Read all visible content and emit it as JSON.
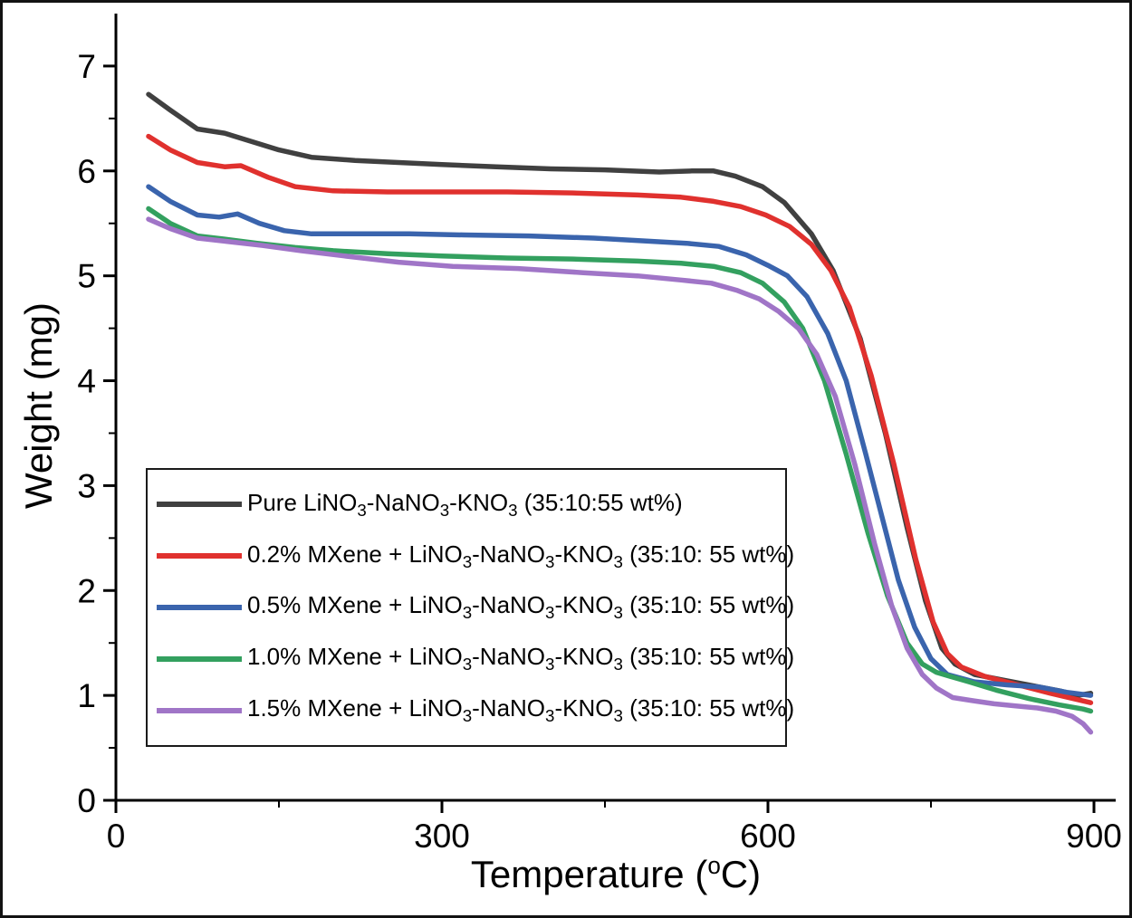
{
  "figure": {
    "background": "#ffffff",
    "border_color": "#121212"
  },
  "axes": {
    "ylabel": "Weight (mg)",
    "xlabel_parts": {
      "pre": "Temperature (",
      "sup": "o",
      "post": "C)"
    }
  },
  "chart_data": {
    "type": "line",
    "title": "",
    "xlabel": "Temperature (oC)",
    "ylabel": "Weight (mg)",
    "xlim": [
      0,
      920
    ],
    "ylim": [
      0,
      7.5
    ],
    "x_ticks": [
      0,
      300,
      600,
      900
    ],
    "x_minor_ticks": [
      150,
      450,
      750
    ],
    "y_ticks": [
      0,
      1,
      2,
      3,
      4,
      5,
      6,
      7
    ],
    "y_minor_ticks": [
      0.5,
      1.5,
      2.5,
      3.5,
      4.5,
      5.5,
      6.5
    ],
    "grid": false,
    "legend_position": "inside lower-left",
    "series": [
      {
        "name": "Pure LiNO3-NaNO3-KNO3 (35:10:55 wt%)",
        "color": "#404040",
        "x": [
          30,
          50,
          75,
          100,
          125,
          150,
          180,
          220,
          260,
          300,
          350,
          400,
          450,
          500,
          530,
          550,
          570,
          595,
          615,
          640,
          660,
          685,
          708,
          728,
          745,
          760,
          772,
          790,
          815,
          845,
          870,
          885,
          897
        ],
        "y": [
          6.73,
          6.58,
          6.4,
          6.36,
          6.28,
          6.2,
          6.13,
          6.1,
          6.08,
          6.06,
          6.04,
          6.02,
          6.01,
          5.99,
          6.0,
          6.0,
          5.95,
          5.85,
          5.7,
          5.4,
          5.05,
          4.4,
          3.5,
          2.6,
          1.9,
          1.45,
          1.3,
          1.2,
          1.15,
          1.09,
          1.04,
          1.0,
          1.02
        ]
      },
      {
        "name": "0.2% MXene + LiNO3-NaNO3-KNO3 (35:10: 55 wt%)",
        "color": "#e0312e",
        "x": [
          30,
          50,
          75,
          100,
          115,
          140,
          165,
          200,
          250,
          300,
          360,
          420,
          480,
          520,
          550,
          575,
          598,
          620,
          640,
          658,
          675,
          695,
          716,
          736,
          752,
          765,
          778,
          800,
          830,
          860,
          885,
          897
        ],
        "y": [
          6.33,
          6.2,
          6.08,
          6.04,
          6.05,
          5.94,
          5.85,
          5.81,
          5.8,
          5.8,
          5.8,
          5.79,
          5.77,
          5.75,
          5.71,
          5.66,
          5.58,
          5.47,
          5.3,
          5.05,
          4.7,
          4.05,
          3.2,
          2.3,
          1.7,
          1.4,
          1.27,
          1.18,
          1.1,
          1.02,
          0.96,
          0.93
        ]
      },
      {
        "name": "0.5% MXene + LiNO3-NaNO3-KNO3 (35:10: 55 wt%)",
        "color": "#3a64ad",
        "x": [
          30,
          50,
          75,
          95,
          112,
          132,
          155,
          180,
          220,
          270,
          320,
          380,
          440,
          490,
          525,
          555,
          580,
          600,
          618,
          636,
          655,
          672,
          690,
          705,
          720,
          735,
          750,
          765,
          790,
          820,
          850,
          875,
          897
        ],
        "y": [
          5.85,
          5.71,
          5.58,
          5.56,
          5.59,
          5.5,
          5.43,
          5.4,
          5.4,
          5.4,
          5.39,
          5.38,
          5.36,
          5.33,
          5.31,
          5.28,
          5.2,
          5.1,
          5.0,
          4.8,
          4.45,
          4.0,
          3.3,
          2.7,
          2.1,
          1.65,
          1.35,
          1.2,
          1.13,
          1.1,
          1.08,
          1.03,
          1.0
        ]
      },
      {
        "name": "1.0% MXene + LiNO3-NaNO3-KNO3 (35:10: 55 wt%)",
        "color": "#33a05f",
        "x": [
          30,
          50,
          75,
          100,
          130,
          165,
          200,
          250,
          300,
          360,
          420,
          480,
          520,
          550,
          575,
          595,
          615,
          632,
          652,
          672,
          692,
          710,
          728,
          742,
          755,
          768,
          785,
          810,
          840,
          868,
          890,
          897
        ],
        "y": [
          5.64,
          5.5,
          5.38,
          5.35,
          5.31,
          5.27,
          5.24,
          5.21,
          5.19,
          5.17,
          5.16,
          5.14,
          5.12,
          5.09,
          5.03,
          4.93,
          4.75,
          4.5,
          4.0,
          3.3,
          2.55,
          1.95,
          1.5,
          1.3,
          1.22,
          1.18,
          1.13,
          1.05,
          0.97,
          0.91,
          0.87,
          0.85
        ]
      },
      {
        "name": "1.5% MXene + LiNO3-NaNO3-KNO3 (35:10: 55 wt%)",
        "color": "#a075c7",
        "x": [
          30,
          50,
          75,
          100,
          135,
          170,
          210,
          260,
          310,
          370,
          430,
          480,
          520,
          548,
          572,
          592,
          610,
          628,
          645,
          662,
          680,
          698,
          714,
          728,
          742,
          755,
          770,
          788,
          808,
          828,
          848,
          865,
          880,
          890,
          897
        ],
        "y": [
          5.54,
          5.45,
          5.36,
          5.33,
          5.29,
          5.24,
          5.19,
          5.13,
          5.09,
          5.07,
          5.03,
          5.0,
          4.96,
          4.93,
          4.86,
          4.78,
          4.66,
          4.5,
          4.25,
          3.85,
          3.2,
          2.45,
          1.85,
          1.45,
          1.2,
          1.07,
          0.98,
          0.95,
          0.92,
          0.9,
          0.88,
          0.85,
          0.8,
          0.73,
          0.65
        ]
      }
    ]
  },
  "legend": {
    "border_color": "#1a1a1a",
    "entries": [
      {
        "color": "#404040",
        "segments": [
          {
            "t": "Pure LiNO"
          },
          {
            "t": "3",
            "sub": true
          },
          {
            "t": "-NaNO"
          },
          {
            "t": "3",
            "sub": true
          },
          {
            "t": "-KNO"
          },
          {
            "t": "3",
            "sub": true
          },
          {
            "t": " (35:10:55 wt%)"
          }
        ]
      },
      {
        "color": "#e0312e",
        "segments": [
          {
            "t": "0.2% MXene + LiNO"
          },
          {
            "t": "3",
            "sub": true
          },
          {
            "t": "-NaNO"
          },
          {
            "t": "3",
            "sub": true
          },
          {
            "t": "-KNO"
          },
          {
            "t": "3",
            "sub": true
          },
          {
            "t": " (35:10: 55 wt%)"
          }
        ]
      },
      {
        "color": "#3a64ad",
        "segments": [
          {
            "t": "0.5% MXene + LiNO"
          },
          {
            "t": "3",
            "sub": true
          },
          {
            "t": "-NaNO"
          },
          {
            "t": "3",
            "sub": true
          },
          {
            "t": "-KNO"
          },
          {
            "t": "3",
            "sub": true
          },
          {
            "t": " (35:10: 55 wt%)"
          }
        ]
      },
      {
        "color": "#33a05f",
        "segments": [
          {
            "t": "1.0% MXene + LiNO"
          },
          {
            "t": "3",
            "sub": true
          },
          {
            "t": "-NaNO"
          },
          {
            "t": "3",
            "sub": true
          },
          {
            "t": "-KNO"
          },
          {
            "t": "3",
            "sub": true
          },
          {
            "t": " (35:10: 55 wt%)"
          }
        ]
      },
      {
        "color": "#a075c7",
        "segments": [
          {
            "t": "1.5% MXene + LiNO"
          },
          {
            "t": "3",
            "sub": true
          },
          {
            "t": "-NaNO"
          },
          {
            "t": "3",
            "sub": true
          },
          {
            "t": "-KNO"
          },
          {
            "t": "3",
            "sub": true
          },
          {
            "t": " (35:10: 55 wt%)"
          }
        ]
      }
    ]
  }
}
